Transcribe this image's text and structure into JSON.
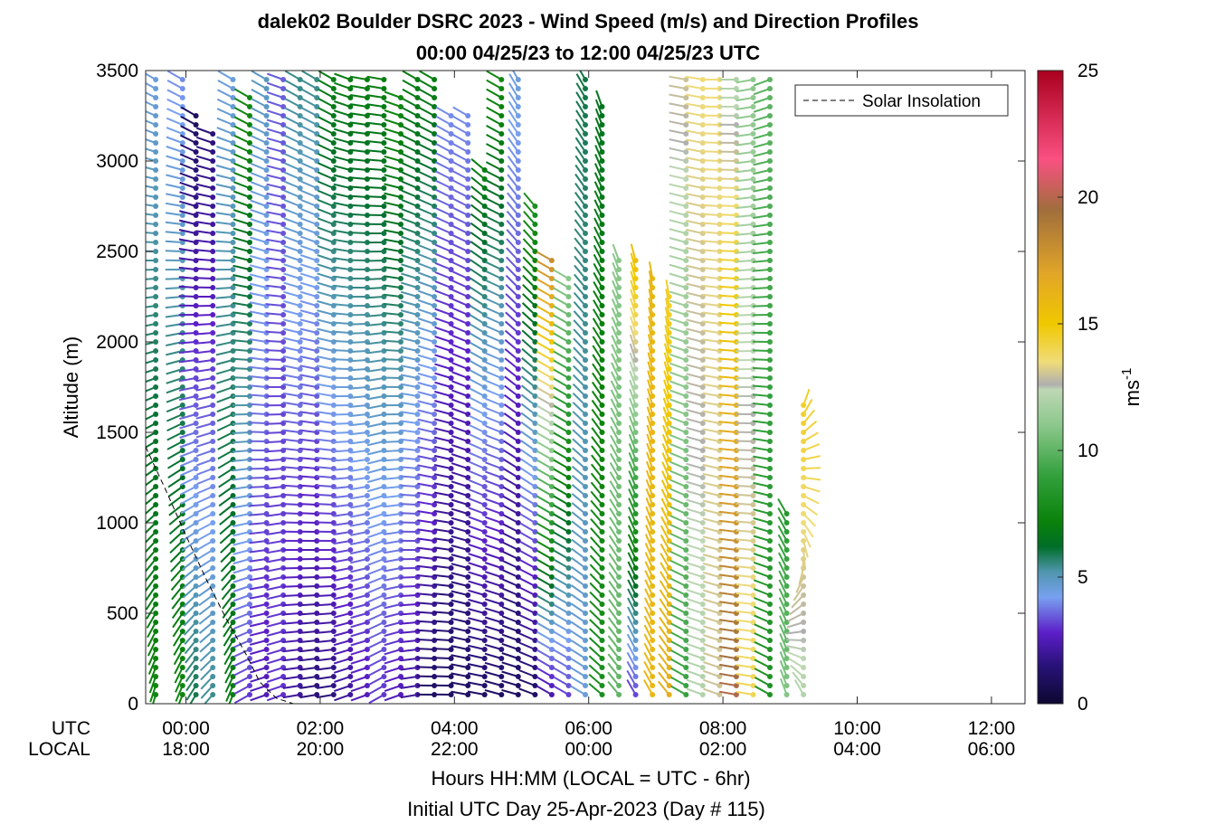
{
  "chart_data": {
    "type": "wind-barb-profile",
    "title": "dalek02 Boulder DSRC 2023 - Wind Speed (m/s) and Direction Profiles",
    "subtitle": "00:00 04/25/23 to 12:00 04/25/23  UTC",
    "ylabel": "Altitude (m)",
    "ylim": [
      0,
      3500
    ],
    "yticks": [
      "0",
      "500",
      "1000",
      "1500",
      "2000",
      "2500",
      "3000",
      "3500"
    ],
    "xlim_hours": [
      -0.6,
      12.5
    ],
    "x_row_labels": [
      "UTC",
      "LOCAL"
    ],
    "xticks_utc": [
      "00:00",
      "02:00",
      "04:00",
      "06:00",
      "08:00",
      "10:00",
      "12:00"
    ],
    "xticks_local": [
      "18:00",
      "20:00",
      "22:00",
      "00:00",
      "02:00",
      "04:00",
      "06:00"
    ],
    "xlabel": "Hours HH:MM  (LOCAL = UTC - 6hr)",
    "xlabel2": "Initial UTC Day 25-Apr-2023 (Day # 115)",
    "colorbar": {
      "label": "ms",
      "label_superscript": "-1",
      "range": [
        0,
        25
      ],
      "ticks": [
        "0",
        "5",
        "10",
        "15",
        "20",
        "25"
      ]
    },
    "legend": {
      "entries": [
        "Solar Insolation"
      ],
      "placement": "top-right",
      "style": "dashed black line"
    },
    "solar_insolation": {
      "hours": [
        -0.6,
        -0.3,
        0.0,
        0.3,
        0.6,
        0.9,
        1.1,
        1.35,
        1.6,
        12.5
      ],
      "altitude_m": [
        1420,
        1180,
        930,
        690,
        470,
        270,
        120,
        30,
        0,
        0
      ]
    },
    "profiles": [
      {
        "hour": -0.45,
        "top_m": 3450,
        "speed_bottom": 7.5,
        "speed_top": 4.5,
        "dir_bottom": 195,
        "dir_top": 300
      },
      {
        "hour": -0.05,
        "top_m": 3450,
        "speed_bottom": 7.5,
        "speed_top": 4.0,
        "dir_bottom": 200,
        "dir_top": 300
      },
      {
        "hour": 0.15,
        "top_m": 3250,
        "speed_bottom": 6.0,
        "speed_top": 1.0,
        "dir_bottom": 210,
        "dir_top": 300
      },
      {
        "hour": 0.4,
        "top_m": 3150,
        "speed_bottom": 5.5,
        "speed_top": 1.5,
        "dir_bottom": 220,
        "dir_top": 290
      },
      {
        "hour": 0.7,
        "top_m": 3450,
        "speed_bottom": 7.0,
        "speed_top": 4.5,
        "dir_bottom": 200,
        "dir_top": 300
      },
      {
        "hour": 0.95,
        "top_m": 3350,
        "speed_bottom": 3.0,
        "speed_top": 7.5,
        "dir_bottom": 240,
        "dir_top": 300
      },
      {
        "hour": 1.2,
        "top_m": 3450,
        "speed_bottom": 2.5,
        "speed_top": 5.0,
        "dir_bottom": 250,
        "dir_top": 300
      },
      {
        "hour": 1.45,
        "top_m": 3450,
        "speed_bottom": 3.0,
        "speed_top": 3.5,
        "dir_bottom": 250,
        "dir_top": 290
      },
      {
        "hour": 1.7,
        "top_m": 3450,
        "speed_bottom": 2.0,
        "speed_top": 5.5,
        "dir_bottom": 260,
        "dir_top": 300
      },
      {
        "hour": 1.95,
        "top_m": 3450,
        "speed_bottom": 1.5,
        "speed_top": 5.5,
        "dir_bottom": 260,
        "dir_top": 300
      },
      {
        "hour": 2.2,
        "top_m": 3450,
        "speed_bottom": 1.5,
        "speed_top": 7.0,
        "dir_bottom": 260,
        "dir_top": 300
      },
      {
        "hour": 2.45,
        "top_m": 3450,
        "speed_bottom": 2.0,
        "speed_top": 7.0,
        "dir_bottom": 250,
        "dir_top": 290
      },
      {
        "hour": 2.7,
        "top_m": 3450,
        "speed_bottom": 2.5,
        "speed_top": 7.0,
        "dir_bottom": 250,
        "dir_top": 280
      },
      {
        "hour": 2.95,
        "top_m": 3450,
        "speed_bottom": 3.0,
        "speed_top": 7.0,
        "dir_bottom": 240,
        "dir_top": 280
      },
      {
        "hour": 3.2,
        "top_m": 3350,
        "speed_bottom": 2.5,
        "speed_top": 7.5,
        "dir_bottom": 250,
        "dir_top": 290
      },
      {
        "hour": 3.45,
        "top_m": 3450,
        "speed_bottom": 2.0,
        "speed_top": 7.0,
        "dir_bottom": 260,
        "dir_top": 300
      },
      {
        "hour": 3.7,
        "top_m": 3450,
        "speed_bottom": 1.0,
        "speed_top": 7.0,
        "dir_bottom": 270,
        "dir_top": 300
      },
      {
        "hour": 3.95,
        "top_m": 3250,
        "speed_bottom": 1.0,
        "speed_top": 4.0,
        "dir_bottom": 270,
        "dir_top": 300
      },
      {
        "hour": 4.2,
        "top_m": 3250,
        "speed_bottom": 1.0,
        "speed_top": 4.0,
        "dir_bottom": 280,
        "dir_top": 300
      },
      {
        "hour": 4.45,
        "top_m": 2950,
        "speed_bottom": 1.0,
        "speed_top": 7.0,
        "dir_bottom": 280,
        "dir_top": 310
      },
      {
        "hour": 4.7,
        "top_m": 3450,
        "speed_bottom": 1.0,
        "speed_top": 7.5,
        "dir_bottom": 285,
        "dir_top": 300
      },
      {
        "hour": 4.95,
        "top_m": 3450,
        "speed_bottom": 1.0,
        "speed_top": 4.5,
        "dir_bottom": 285,
        "dir_top": 330
      },
      {
        "hour": 5.2,
        "top_m": 2750,
        "speed_bottom": 1.0,
        "speed_top": 8.0,
        "dir_bottom": 290,
        "dir_top": 320
      },
      {
        "hour": 5.45,
        "top_m": 2450,
        "speed_bottom": 2.0,
        "speed_top": 18.0,
        "dir_bottom": 300,
        "dir_top": 300
      },
      {
        "hour": 5.7,
        "top_m": 2350,
        "speed_bottom": 3.0,
        "speed_top": 11.0,
        "dir_bottom": 300,
        "dir_top": 300
      },
      {
        "hour": 5.95,
        "top_m": 3450,
        "speed_bottom": 4.5,
        "speed_top": 6.0,
        "dir_bottom": 300,
        "dir_top": 330
      },
      {
        "hour": 6.2,
        "top_m": 3300,
        "speed_bottom": 8.0,
        "speed_top": 6.5,
        "dir_bottom": 310,
        "dir_top": 340
      },
      {
        "hour": 6.45,
        "top_m": 2450,
        "speed_bottom": 10.0,
        "speed_top": 11.0,
        "dir_bottom": 320,
        "dir_top": 340
      },
      {
        "hour": 6.7,
        "top_m": 2450,
        "speed_bottom": 3.0,
        "speed_top": 15.5,
        "dir_bottom": 330,
        "dir_top": 345
      },
      {
        "hour": 6.95,
        "top_m": 2350,
        "speed_bottom": 16.0,
        "speed_top": 16.0,
        "dir_bottom": 330,
        "dir_top": 350
      },
      {
        "hour": 7.2,
        "top_m": 2250,
        "speed_bottom": 16.5,
        "speed_top": 14.5,
        "dir_bottom": 320,
        "dir_top": 350
      },
      {
        "hour": 7.45,
        "top_m": 3450,
        "speed_bottom": 9.0,
        "speed_top": 13.0,
        "dir_bottom": 300,
        "dir_top": 280
      },
      {
        "hour": 7.7,
        "top_m": 3450,
        "speed_bottom": 12.0,
        "speed_top": 13.5,
        "dir_bottom": 290,
        "dir_top": 280
      },
      {
        "hour": 7.95,
        "top_m": 3450,
        "speed_bottom": 13.0,
        "speed_top": 13.5,
        "dir_bottom": 290,
        "dir_top": 270
      },
      {
        "hour": 8.2,
        "top_m": 3450,
        "speed_bottom": 20.0,
        "speed_top": 12.0,
        "dir_bottom": 280,
        "dir_top": 270
      },
      {
        "hour": 8.45,
        "top_m": 3450,
        "speed_bottom": 14.0,
        "speed_top": 11.0,
        "dir_bottom": 280,
        "dir_top": 260
      },
      {
        "hour": 8.7,
        "top_m": 3450,
        "speed_bottom": 8.0,
        "speed_top": 10.0,
        "dir_bottom": 300,
        "dir_top": 250
      },
      {
        "hour": 8.95,
        "top_m": 1050,
        "speed_bottom": 11.0,
        "speed_top": 8.5,
        "dir_bottom": 340,
        "dir_top": 330
      },
      {
        "hour": 9.2,
        "top_m": 1650,
        "speed_bottom": 12.0,
        "speed_top": 14.5,
        "dir_bottom": 340,
        "dir_top": 20
      }
    ]
  }
}
